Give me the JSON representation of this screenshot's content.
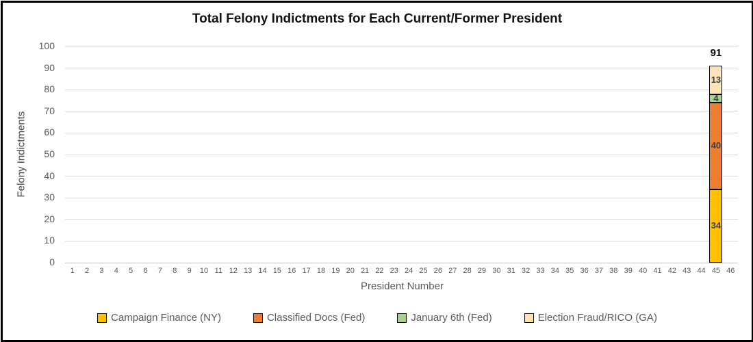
{
  "frame": {
    "background": "#ffffff",
    "border_color": "#000000"
  },
  "chart_data": {
    "type": "bar",
    "stacked": true,
    "title": "Total Felony Indictments for Each Current/Former President",
    "xlabel": "President Number",
    "ylabel": "Felony Indictments",
    "ylim": [
      0,
      100
    ],
    "yticks": [
      0,
      10,
      20,
      30,
      40,
      50,
      60,
      70,
      80,
      90,
      100
    ],
    "categories": [
      "1",
      "2",
      "3",
      "4",
      "5",
      "6",
      "7",
      "8",
      "9",
      "10",
      "11",
      "12",
      "13",
      "14",
      "15",
      "16",
      "17",
      "18",
      "19",
      "20",
      "21",
      "22",
      "23",
      "24",
      "25",
      "26",
      "27",
      "28",
      "29",
      "30",
      "31",
      "32",
      "33",
      "34",
      "35",
      "36",
      "37",
      "38",
      "39",
      "40",
      "41",
      "42",
      "43",
      "44",
      "45",
      "46"
    ],
    "bar_category": "45",
    "series": [
      {
        "name": "Campaign Finance (NY)",
        "value": 34,
        "color": "#FFC000"
      },
      {
        "name": "Classified Docs (Fed)",
        "value": 40,
        "color": "#ED7D31"
      },
      {
        "name": "January 6th (Fed)",
        "value": 4,
        "color": "#A9D18E"
      },
      {
        "name": "Election Fraud/RICO (GA)",
        "value": 13,
        "color": "#FCE4B6"
      }
    ],
    "total_label": "91",
    "grid": true,
    "legend_position": "bottom",
    "colors": {
      "gridline": "#d9d9d9",
      "axis_line": "#bfbfbf",
      "tick_label": "#595959",
      "data_label": "#3f3f3f",
      "total_label": "#000000",
      "bar_border": "#000000",
      "title": "#111111"
    }
  }
}
